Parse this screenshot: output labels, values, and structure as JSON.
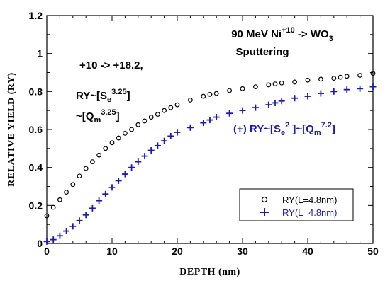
{
  "chart_data": {
    "type": "scatter",
    "title_line1_prefix": "90 MeV Ni",
    "title_line1_sup": "+10",
    "title_line1_mid": " -> WO",
    "title_line1_sub": "3",
    "title_line2": "Sputtering",
    "xlabel": "DEPTH  (nm)",
    "ylabel": "RELATIVE YIELD (RY)",
    "xlim": [
      0,
      50
    ],
    "ylim": [
      0,
      1.2
    ],
    "x_ticks": [
      0,
      10,
      20,
      30,
      40,
      50
    ],
    "x_tick_labels": [
      "0",
      "10",
      "20",
      "30",
      "40",
      "50"
    ],
    "y_ticks": [
      0,
      0.2,
      0.4,
      0.6,
      0.8,
      1.0,
      1.2
    ],
    "y_tick_labels": [
      "0",
      "0.2",
      "0.4",
      "0.6",
      "0.8",
      "1",
      "1.2"
    ],
    "annotations": {
      "charge_state": "+10 -> +18.2,",
      "black_ry_prefix": "RY~[S",
      "black_ry_sub": "e",
      "black_ry_sup": "3.25",
      "black_ry_suffix": "]",
      "black_q_prefix": "~[Q",
      "black_q_sub": "m",
      "black_q_sup": "3.25",
      "black_q_suffix": "]",
      "blue_prefix": "(+) RY~[S",
      "blue_sub1": "e",
      "blue_sup1": "2",
      "blue_mid": " ]~[Q",
      "blue_sub2": "m",
      "blue_sup2": "7.2",
      "blue_suffix": "]"
    },
    "legend_position": "bottom-right",
    "series": [
      {
        "name": "RY(L=4.8nm)",
        "marker": "circle",
        "color": "#000000",
        "x": [
          0,
          1,
          2,
          3,
          4,
          5,
          6,
          7,
          8,
          9,
          10,
          11,
          12,
          13,
          14,
          15,
          16,
          17,
          18,
          19,
          20,
          22,
          24,
          25,
          26,
          28,
          30,
          32,
          34,
          35,
          36,
          38,
          40,
          42,
          44,
          45,
          46,
          48,
          50
        ],
        "y": [
          0.145,
          0.19,
          0.23,
          0.27,
          0.31,
          0.355,
          0.395,
          0.43,
          0.465,
          0.5,
          0.53,
          0.555,
          0.58,
          0.6,
          0.625,
          0.645,
          0.665,
          0.68,
          0.7,
          0.715,
          0.73,
          0.755,
          0.775,
          0.785,
          0.79,
          0.805,
          0.815,
          0.825,
          0.835,
          0.84,
          0.845,
          0.85,
          0.86,
          0.865,
          0.87,
          0.875,
          0.88,
          0.885,
          0.895
        ]
      },
      {
        "name": "RY(L=4.8nm)",
        "marker": "plus",
        "color": "#1a1ab3",
        "x": [
          0,
          1,
          2,
          3,
          4,
          5,
          6,
          7,
          8,
          9,
          10,
          11,
          12,
          13,
          14,
          15,
          16,
          17,
          18,
          19,
          20,
          22,
          24,
          25,
          26,
          28,
          30,
          32,
          34,
          35,
          36,
          38,
          40,
          42,
          44,
          46,
          48,
          50
        ],
        "y": [
          0.01,
          0.02,
          0.04,
          0.065,
          0.09,
          0.12,
          0.15,
          0.185,
          0.225,
          0.26,
          0.295,
          0.33,
          0.365,
          0.4,
          0.43,
          0.46,
          0.49,
          0.515,
          0.54,
          0.565,
          0.585,
          0.61,
          0.635,
          0.65,
          0.665,
          0.685,
          0.7,
          0.715,
          0.73,
          0.74,
          0.75,
          0.765,
          0.775,
          0.79,
          0.8,
          0.81,
          0.815,
          0.825
        ]
      }
    ]
  }
}
